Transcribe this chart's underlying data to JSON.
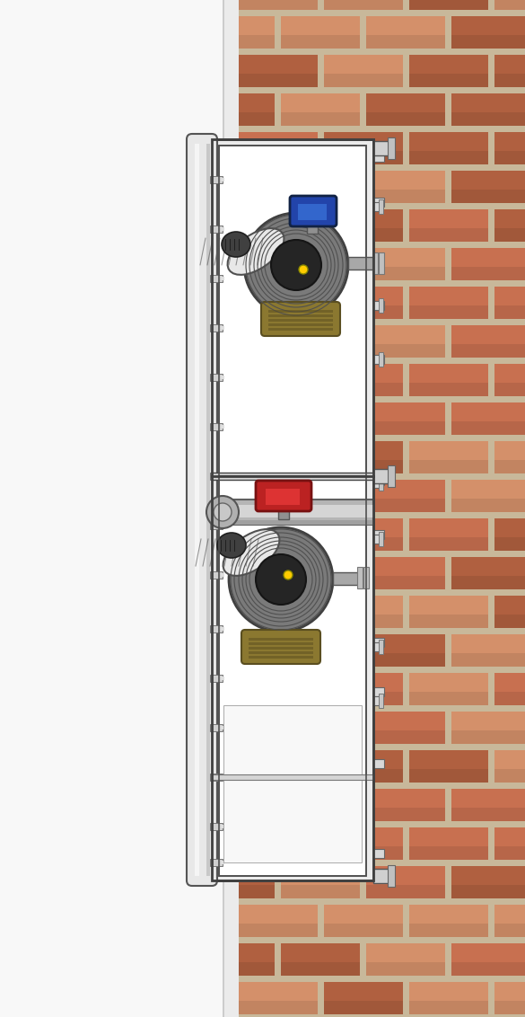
{
  "fig_width": 5.85,
  "fig_height": 11.32,
  "dpi": 100,
  "bg_color": "#ffffff",
  "brick_colors_dark": "#b06040",
  "brick_colors_mid": "#c87050",
  "brick_colors_light": "#d4906a",
  "mortar_color": "#c8b89a",
  "wall_left_color": "#f8f8f8",
  "wall_edge_color": "#e0ddd8",
  "frame_outer_color": "#dcdcdc",
  "frame_inner_color": "#f5f5f5",
  "frame_white": "#ffffff",
  "frame_line": "#404040",
  "frame_light_line": "#888888",
  "rail_color": "#d0d0d0",
  "rail_shadow": "#b0b0b0",
  "col_color": "#e0e0e0",
  "col_shadow": "#c0c0c0",
  "pipe_color": "#c0c0c0",
  "pipe_highlight": "#e0e0e0",
  "valve_body_color": "#808080",
  "valve_inner_dark": "#303030",
  "valve_ring_color": "#606060",
  "brass_color": "#8b7830",
  "brass_dark": "#5a4e20",
  "fitting_gray": "#c8c8c8",
  "fitting_dark": "#888888",
  "fitting_texture": "#a0a0a0",
  "fitting_white": "#e8e8e8",
  "blue_valve": "#2244aa",
  "blue_valve_light": "#3366cc",
  "red_valve": "#bb2222",
  "red_valve_light": "#dd3333",
  "yellow_dot": "#ffcc00",
  "clip_color": "#cccccc",
  "clip_outline": "#888888"
}
